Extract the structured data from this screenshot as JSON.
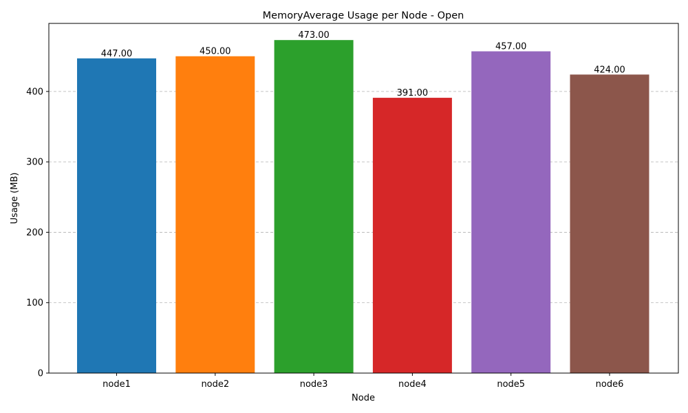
{
  "chart_data": {
    "type": "bar",
    "title": "MemoryAverage  Usage per Node - Open",
    "xlabel": "Node",
    "ylabel": "Usage (MB)",
    "categories": [
      "node1",
      "node2",
      "node3",
      "node4",
      "node5",
      "node6"
    ],
    "values": [
      447,
      450,
      473,
      391,
      457,
      424
    ],
    "value_labels": [
      "447.00",
      "450.00",
      "473.00",
      "391.00",
      "457.00",
      "424.00"
    ],
    "colors": [
      "#1f77b4",
      "#ff7f0e",
      "#2ca02c",
      "#d62728",
      "#9467bd",
      "#8c564b"
    ],
    "ylim": [
      0,
      496.65
    ],
    "yticks": [
      0,
      100,
      200,
      300,
      400
    ],
    "grid": "y-dashed",
    "legend": "none"
  }
}
